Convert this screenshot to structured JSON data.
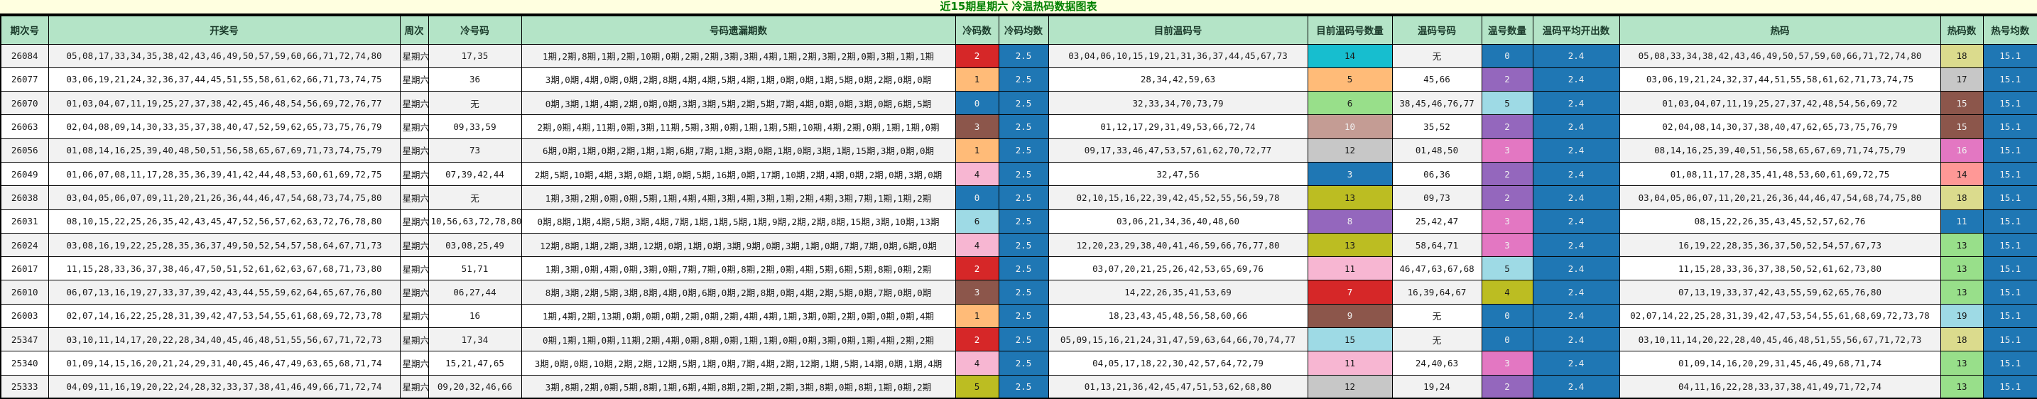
{
  "title": "近15期星期六  冷温热码数据图表",
  "colors": {
    "accent_blue": "#1f77b4",
    "header_bg": "#b4e4c7",
    "title_bg": "#ffffe0",
    "title_text": "#008000",
    "stripe": "#f2f2f2"
  },
  "table": {
    "headers": [
      "期次号",
      "开奖号",
      "周次",
      "冷号码",
      "号码遗漏期数",
      "冷码数",
      "冷码均数",
      "目前温码号",
      "目前温码号数量",
      "温码号码",
      "温号数量",
      "温码平均开出数",
      "热码",
      "热码数",
      "热号均数"
    ],
    "rows": [
      {
        "period": "26084",
        "numbers": "05,08,17,33,34,35,38,42,43,46,49,50,57,59,60,66,71,72,74,80",
        "week": "星期六",
        "cold_numbers": "17,35",
        "miss": "1期,2期,8期,1期,2期,10期,0期,2期,2期,3期,3期,4期,1期,2期,3期,2期,0期,3期,1期,1期",
        "cold_count": {
          "v": "2",
          "bg": "#d62728",
          "fg": "#ffffff"
        },
        "cold_avg": "2.5",
        "warm_current": "03,04,06,10,15,19,21,31,36,37,44,45,67,73",
        "warm_current_count": {
          "v": "14",
          "bg": "#17becf",
          "fg": "#1a1a1a"
        },
        "warm_numbers": "无",
        "warm_count": {
          "v": "0",
          "bg": "#1f77b4",
          "fg": "#f0f0f0"
        },
        "warm_avg": "2.4",
        "hot": "05,08,33,34,38,42,43,46,49,50,57,59,60,66,71,72,74,80",
        "hot_count": {
          "v": "18",
          "bg": "#dbdb8d",
          "fg": "#1a1a1a"
        },
        "hot_avg": "15.1"
      },
      {
        "period": "26077",
        "numbers": "03,06,19,21,24,32,36,37,44,45,51,55,58,61,62,66,71,73,74,75",
        "week": "星期六",
        "cold_numbers": "36",
        "miss": "3期,0期,4期,0期,0期,2期,8期,4期,4期,5期,4期,1期,0期,0期,1期,5期,0期,2期,0期,0期",
        "cold_count": {
          "v": "1",
          "bg": "#ffbb78",
          "fg": "#1a1a1a"
        },
        "cold_avg": "2.5",
        "warm_current": "28,34,42,59,63",
        "warm_current_count": {
          "v": "5",
          "bg": "#ffbb78",
          "fg": "#1a1a1a"
        },
        "warm_numbers": "45,66",
        "warm_count": {
          "v": "2",
          "bg": "#9467bd",
          "fg": "#f0f0f0"
        },
        "warm_avg": "2.4",
        "hot": "03,06,19,21,24,32,37,44,51,55,58,61,62,71,73,74,75",
        "hot_count": {
          "v": "17",
          "bg": "#c7c7c7",
          "fg": "#1a1a1a"
        },
        "hot_avg": "15.1"
      },
      {
        "period": "26070",
        "numbers": "01,03,04,07,11,19,25,27,37,38,42,45,46,48,54,56,69,72,76,77",
        "week": "星期六",
        "cold_numbers": "无",
        "miss": "0期,3期,1期,4期,2期,0期,0期,3期,3期,5期,2期,5期,7期,4期,0期,0期,3期,0期,6期,5期",
        "cold_count": {
          "v": "0",
          "bg": "#1f77b4",
          "fg": "#f0f0f0"
        },
        "cold_avg": "2.5",
        "warm_current": "32,33,34,70,73,79",
        "warm_current_count": {
          "v": "6",
          "bg": "#98df8a",
          "fg": "#1a1a1a"
        },
        "warm_numbers": "38,45,46,76,77",
        "warm_count": {
          "v": "5",
          "bg": "#9edae5",
          "fg": "#1a1a1a"
        },
        "warm_avg": "2.4",
        "hot": "01,03,04,07,11,19,25,27,37,42,48,54,56,69,72",
        "hot_count": {
          "v": "15",
          "bg": "#8c564b",
          "fg": "#f0f0f0"
        },
        "hot_avg": "15.1"
      },
      {
        "period": "26063",
        "numbers": "02,04,08,09,14,30,33,35,37,38,40,47,52,59,62,65,73,75,76,79",
        "week": "星期六",
        "cold_numbers": "09,33,59",
        "miss": "2期,0期,4期,11期,0期,3期,11期,5期,3期,0期,1期,1期,5期,10期,4期,2期,0期,1期,1期,0期",
        "cold_count": {
          "v": "3",
          "bg": "#8c564b",
          "fg": "#f0f0f0"
        },
        "cold_avg": "2.5",
        "warm_current": "01,12,17,29,31,49,53,66,72,74",
        "warm_current_count": {
          "v": "10",
          "bg": "#c49c94",
          "fg": "#f0f0f0"
        },
        "warm_numbers": "35,52",
        "warm_count": {
          "v": "2",
          "bg": "#9467bd",
          "fg": "#f0f0f0"
        },
        "warm_avg": "2.4",
        "hot": "02,04,08,14,30,37,38,40,47,62,65,73,75,76,79",
        "hot_count": {
          "v": "15",
          "bg": "#8c564b",
          "fg": "#f0f0f0"
        },
        "hot_avg": "15.1"
      },
      {
        "period": "26056",
        "numbers": "01,08,14,16,25,39,40,48,50,51,56,58,65,67,69,71,73,74,75,79",
        "week": "星期六",
        "cold_numbers": "73",
        "miss": "6期,0期,1期,0期,2期,1期,1期,6期,7期,1期,3期,0期,1期,0期,3期,1期,15期,3期,0期,0期",
        "cold_count": {
          "v": "1",
          "bg": "#ffbb78",
          "fg": "#1a1a1a"
        },
        "cold_avg": "2.5",
        "warm_current": "09,17,33,46,47,53,57,61,62,70,72,77",
        "warm_current_count": {
          "v": "12",
          "bg": "#c7c7c7",
          "fg": "#1a1a1a"
        },
        "warm_numbers": "01,48,50",
        "warm_count": {
          "v": "3",
          "bg": "#e377c2",
          "fg": "#f0f0f0"
        },
        "warm_avg": "2.4",
        "hot": "08,14,16,25,39,40,51,56,58,65,67,69,71,74,75,79",
        "hot_count": {
          "v": "16",
          "bg": "#e377c2",
          "fg": "#f0f0f0"
        },
        "hot_avg": "15.1"
      },
      {
        "period": "26049",
        "numbers": "01,06,07,08,11,17,28,35,36,39,41,42,44,48,53,60,61,69,72,75",
        "week": "星期六",
        "cold_numbers": "07,39,42,44",
        "miss": "2期,5期,10期,4期,3期,0期,1期,0期,5期,16期,0期,17期,10期,2期,4期,0期,2期,0期,3期,0期",
        "cold_count": {
          "v": "4",
          "bg": "#f7b6d2",
          "fg": "#1a1a1a"
        },
        "cold_avg": "2.5",
        "warm_current": "32,47,56",
        "warm_current_count": {
          "v": "3",
          "bg": "#1f77b4",
          "fg": "#f0f0f0"
        },
        "warm_numbers": "06,36",
        "warm_count": {
          "v": "2",
          "bg": "#9467bd",
          "fg": "#f0f0f0"
        },
        "warm_avg": "2.4",
        "hot": "01,08,11,17,28,35,41,48,53,60,61,69,72,75",
        "hot_count": {
          "v": "14",
          "bg": "#ff9896",
          "fg": "#1a1a1a"
        },
        "hot_avg": "15.1"
      },
      {
        "period": "26038",
        "numbers": "03,04,05,06,07,09,11,20,21,26,36,44,46,47,54,68,73,74,75,80",
        "week": "星期六",
        "cold_numbers": "无",
        "miss": "1期,3期,2期,0期,0期,5期,1期,4期,4期,3期,4期,3期,1期,2期,4期,3期,7期,1期,1期,2期",
        "cold_count": {
          "v": "0",
          "bg": "#1f77b4",
          "fg": "#f0f0f0"
        },
        "cold_avg": "2.5",
        "warm_current": "02,10,15,16,22,39,42,45,52,55,56,59,78",
        "warm_current_count": {
          "v": "13",
          "bg": "#bcbd22",
          "fg": "#1a1a1a"
        },
        "warm_numbers": "09,73",
        "warm_count": {
          "v": "2",
          "bg": "#9467bd",
          "fg": "#f0f0f0"
        },
        "warm_avg": "2.4",
        "hot": "03,04,05,06,07,11,20,21,26,36,44,46,47,54,68,74,75,80",
        "hot_count": {
          "v": "18",
          "bg": "#dbdb8d",
          "fg": "#1a1a1a"
        },
        "hot_avg": "15.1"
      },
      {
        "period": "26031",
        "numbers": "08,10,15,22,25,26,35,42,43,45,47,52,56,57,62,63,72,76,78,80",
        "week": "星期六",
        "cold_numbers": "10,56,63,72,78,80",
        "miss": "0期,8期,1期,4期,5期,3期,4期,7期,1期,1期,5期,1期,9期,2期,2期,8期,15期,3期,10期,13期",
        "cold_count": {
          "v": "6",
          "bg": "#9edae5",
          "fg": "#1a1a1a"
        },
        "cold_avg": "2.5",
        "warm_current": "03,06,21,34,36,40,48,60",
        "warm_current_count": {
          "v": "8",
          "bg": "#9467bd",
          "fg": "#f0f0f0"
        },
        "warm_numbers": "25,42,47",
        "warm_count": {
          "v": "3",
          "bg": "#e377c2",
          "fg": "#f0f0f0"
        },
        "warm_avg": "2.4",
        "hot": "08,15,22,26,35,43,45,52,57,62,76",
        "hot_count": {
          "v": "11",
          "bg": "#1f77b4",
          "fg": "#f0f0f0"
        },
        "hot_avg": "15.1"
      },
      {
        "period": "26024",
        "numbers": "03,08,16,19,22,25,28,35,36,37,49,50,52,54,57,58,64,67,71,73",
        "week": "星期六",
        "cold_numbers": "03,08,25,49",
        "miss": "12期,8期,1期,2期,3期,12期,0期,1期,0期,3期,9期,0期,3期,1期,0期,7期,7期,0期,6期,0期",
        "cold_count": {
          "v": "4",
          "bg": "#f7b6d2",
          "fg": "#1a1a1a"
        },
        "cold_avg": "2.5",
        "warm_current": "12,20,23,29,38,40,41,46,59,66,76,77,80",
        "warm_current_count": {
          "v": "13",
          "bg": "#bcbd22",
          "fg": "#1a1a1a"
        },
        "warm_numbers": "58,64,71",
        "warm_count": {
          "v": "3",
          "bg": "#e377c2",
          "fg": "#f0f0f0"
        },
        "warm_avg": "2.4",
        "hot": "16,19,22,28,35,36,37,50,52,54,57,67,73",
        "hot_count": {
          "v": "13",
          "bg": "#98df8a",
          "fg": "#1a1a1a"
        },
        "hot_avg": "15.1"
      },
      {
        "period": "26017",
        "numbers": "11,15,28,33,36,37,38,46,47,50,51,52,61,62,63,67,68,71,73,80",
        "week": "星期六",
        "cold_numbers": "51,71",
        "miss": "1期,3期,0期,4期,0期,3期,0期,7期,7期,0期,8期,2期,0期,4期,5期,6期,5期,8期,0期,2期",
        "cold_count": {
          "v": "2",
          "bg": "#d62728",
          "fg": "#ffffff"
        },
        "cold_avg": "2.5",
        "warm_current": "03,07,20,21,25,26,42,53,65,69,76",
        "warm_current_count": {
          "v": "11",
          "bg": "#f7b6d2",
          "fg": "#1a1a1a"
        },
        "warm_numbers": "46,47,63,67,68",
        "warm_count": {
          "v": "5",
          "bg": "#9edae5",
          "fg": "#1a1a1a"
        },
        "warm_avg": "2.4",
        "hot": "11,15,28,33,36,37,38,50,52,61,62,73,80",
        "hot_count": {
          "v": "13",
          "bg": "#98df8a",
          "fg": "#1a1a1a"
        },
        "hot_avg": "15.1"
      },
      {
        "period": "26010",
        "numbers": "06,07,13,16,19,27,33,37,39,42,43,44,55,59,62,64,65,67,76,80",
        "week": "星期六",
        "cold_numbers": "06,27,44",
        "miss": "8期,3期,2期,5期,3期,8期,4期,0期,6期,0期,2期,8期,0期,4期,2期,5期,0期,7期,0期,0期",
        "cold_count": {
          "v": "3",
          "bg": "#8c564b",
          "fg": "#f0f0f0"
        },
        "cold_avg": "2.5",
        "warm_current": "14,22,26,35,41,53,69",
        "warm_current_count": {
          "v": "7",
          "bg": "#d62728",
          "fg": "#ffffff"
        },
        "warm_numbers": "16,39,64,67",
        "warm_count": {
          "v": "4",
          "bg": "#bcbd22",
          "fg": "#1a1a1a"
        },
        "warm_avg": "2.4",
        "hot": "07,13,19,33,37,42,43,55,59,62,65,76,80",
        "hot_count": {
          "v": "13",
          "bg": "#98df8a",
          "fg": "#1a1a1a"
        },
        "hot_avg": "15.1"
      },
      {
        "period": "26003",
        "numbers": "02,07,14,16,22,25,28,31,39,42,47,53,54,55,61,68,69,72,73,78",
        "week": "星期六",
        "cold_numbers": "16",
        "miss": "1期,4期,2期,13期,0期,0期,0期,2期,0期,2期,4期,4期,1期,3期,0期,2期,0期,0期,0期,4期",
        "cold_count": {
          "v": "1",
          "bg": "#ffbb78",
          "fg": "#1a1a1a"
        },
        "cold_avg": "2.5",
        "warm_current": "18,23,43,45,48,56,58,60,66",
        "warm_current_count": {
          "v": "9",
          "bg": "#8c564b",
          "fg": "#f0f0f0"
        },
        "warm_numbers": "无",
        "warm_count": {
          "v": "0",
          "bg": "#1f77b4",
          "fg": "#f0f0f0"
        },
        "warm_avg": "2.4",
        "hot": "02,07,14,22,25,28,31,39,42,47,53,54,55,61,68,69,72,73,78",
        "hot_count": {
          "v": "19",
          "bg": "#9edae5",
          "fg": "#1a1a1a"
        },
        "hot_avg": "15.1"
      },
      {
        "period": "25347",
        "numbers": "03,10,11,14,17,20,22,28,34,40,45,46,48,51,55,56,67,71,72,73",
        "week": "星期六",
        "cold_numbers": "17,34",
        "miss": "0期,1期,1期,0期,11期,2期,4期,0期,8期,0期,1期,1期,0期,0期,3期,0期,1期,4期,2期,2期",
        "cold_count": {
          "v": "2",
          "bg": "#d62728",
          "fg": "#ffffff"
        },
        "cold_avg": "2.5",
        "warm_current": "05,09,15,16,21,24,31,47,59,63,64,66,70,74,77",
        "warm_current_count": {
          "v": "15",
          "bg": "#9edae5",
          "fg": "#1a1a1a"
        },
        "warm_numbers": "无",
        "warm_count": {
          "v": "0",
          "bg": "#1f77b4",
          "fg": "#f0f0f0"
        },
        "warm_avg": "2.4",
        "hot": "03,10,11,14,20,22,28,40,45,46,48,51,55,56,67,71,72,73",
        "hot_count": {
          "v": "18",
          "bg": "#dbdb8d",
          "fg": "#1a1a1a"
        },
        "hot_avg": "15.1"
      },
      {
        "period": "25340",
        "numbers": "01,09,14,15,16,20,21,24,29,31,40,45,46,47,49,63,65,68,71,74",
        "week": "星期六",
        "cold_numbers": "15,21,47,65",
        "miss": "3期,0期,0期,10期,2期,2期,12期,5期,1期,0期,7期,4期,2期,12期,1期,5期,14期,0期,1期,4期",
        "cold_count": {
          "v": "4",
          "bg": "#f7b6d2",
          "fg": "#1a1a1a"
        },
        "cold_avg": "2.5",
        "warm_current": "04,05,17,18,22,30,42,57,64,72,79",
        "warm_current_count": {
          "v": "11",
          "bg": "#f7b6d2",
          "fg": "#1a1a1a"
        },
        "warm_numbers": "24,40,63",
        "warm_count": {
          "v": "3",
          "bg": "#e377c2",
          "fg": "#f0f0f0"
        },
        "warm_avg": "2.4",
        "hot": "01,09,14,16,20,29,31,45,46,49,68,71,74",
        "hot_count": {
          "v": "13",
          "bg": "#98df8a",
          "fg": "#1a1a1a"
        },
        "hot_avg": "15.1"
      },
      {
        "period": "25333",
        "numbers": "04,09,11,16,19,20,22,24,28,32,33,37,38,41,46,49,66,71,72,74",
        "week": "星期六",
        "cold_numbers": "09,20,32,46,66",
        "miss": "3期,8期,2期,0期,5期,8期,1期,6期,4期,8期,2期,2期,2期,3期,8期,0期,8期,1期,0期,2期",
        "cold_count": {
          "v": "5",
          "bg": "#bcbd22",
          "fg": "#1a1a1a"
        },
        "cold_avg": "2.5",
        "warm_current": "01,13,21,36,42,45,47,51,53,62,68,80",
        "warm_current_count": {
          "v": "12",
          "bg": "#c7c7c7",
          "fg": "#1a1a1a"
        },
        "warm_numbers": "19,24",
        "warm_count": {
          "v": "2",
          "bg": "#9467bd",
          "fg": "#f0f0f0"
        },
        "warm_avg": "2.4",
        "hot": "04,11,16,22,28,33,37,38,41,49,71,72,74",
        "hot_count": {
          "v": "13",
          "bg": "#98df8a",
          "fg": "#1a1a1a"
        },
        "hot_avg": "15.1"
      }
    ]
  }
}
